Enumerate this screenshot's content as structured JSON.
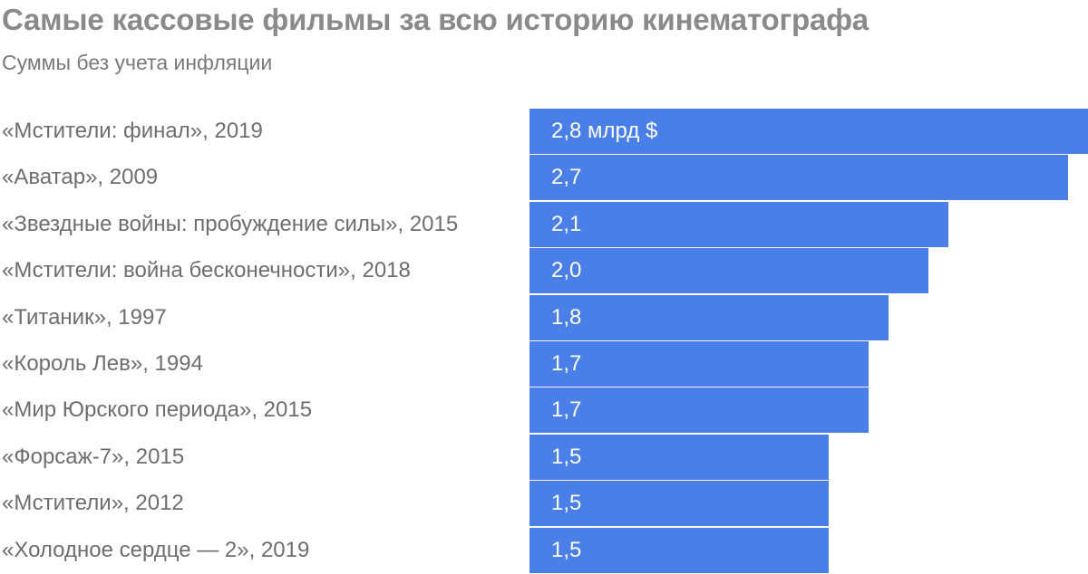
{
  "chart_data": {
    "type": "bar",
    "orientation": "horizontal",
    "title": "Самые кассовые фильмы за всю историю кинематографа",
    "subtitle": "Суммы без учета инфляции",
    "categories": [
      "«Мстители: финал», 2019",
      "«Аватар», 2009",
      "«Звездные войны: пробуждение силы», 2015",
      "«Мстители: война бесконечности», 2018",
      "«Титаник», 1997",
      "«Король Лев», 1994",
      "«Мир Юрского периода», 2015",
      "«Форсаж-7», 2015",
      "«Мстители», 2012",
      "«Холодное сердце — 2», 2019"
    ],
    "values": [
      2.8,
      2.7,
      2.1,
      2.0,
      1.8,
      1.7,
      1.7,
      1.5,
      1.5,
      1.5
    ],
    "data_labels": [
      "2,8 млрд $",
      "2,7",
      "2,1",
      "2,0",
      "1,8",
      "1,7",
      "1,7",
      "1,5",
      "1,5",
      "1,5"
    ],
    "unit": "млрд $",
    "xlim": [
      0,
      2.8
    ],
    "grid": false,
    "legend": "none",
    "colors": {
      "bar": "#4a7fe8",
      "bar_text": "#ffffff",
      "category_text": "#6e6e6e",
      "title": "#8a8a8a",
      "subtitle": "#7a7a7a"
    }
  }
}
